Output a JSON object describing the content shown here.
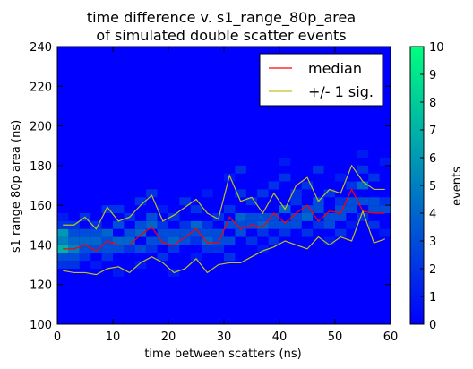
{
  "chart_data": {
    "type": "heatmap",
    "title": "time difference v. s1_range_80p_area",
    "subtitle": "of simulated double scatter events",
    "xlabel": "time between scatters (ns)",
    "ylabel": "s1 range 80p area (ns)",
    "xlim": [
      0,
      60
    ],
    "ylim": [
      100,
      240
    ],
    "xticks": [
      0,
      10,
      20,
      30,
      40,
      50,
      60
    ],
    "yticks": [
      100,
      120,
      140,
      160,
      180,
      200,
      220,
      240
    ],
    "grid": false,
    "legend_position": "top-right",
    "heatmap": {
      "x_bin_width": 2,
      "y_bin_width": 4,
      "cells": [
        [
          0,
          136,
          7
        ],
        [
          0,
          140,
          5
        ],
        [
          0,
          144,
          6
        ],
        [
          0,
          132,
          3
        ],
        [
          0,
          128,
          2
        ],
        [
          0,
          148,
          2
        ],
        [
          0,
          152,
          1
        ],
        [
          2,
          136,
          5
        ],
        [
          2,
          140,
          4
        ],
        [
          2,
          132,
          3
        ],
        [
          2,
          144,
          3
        ],
        [
          2,
          128,
          2
        ],
        [
          2,
          148,
          2
        ],
        [
          4,
          140,
          4
        ],
        [
          4,
          136,
          3
        ],
        [
          4,
          144,
          3
        ],
        [
          4,
          132,
          2
        ],
        [
          4,
          152,
          2
        ],
        [
          6,
          140,
          4
        ],
        [
          6,
          136,
          3
        ],
        [
          6,
          144,
          3
        ],
        [
          6,
          148,
          2
        ],
        [
          6,
          128,
          1
        ],
        [
          8,
          144,
          4
        ],
        [
          8,
          140,
          3
        ],
        [
          8,
          136,
          3
        ],
        [
          8,
          132,
          2
        ],
        [
          8,
          156,
          2
        ],
        [
          10,
          140,
          4
        ],
        [
          10,
          148,
          3
        ],
        [
          10,
          136,
          3
        ],
        [
          10,
          156,
          2
        ],
        [
          10,
          124,
          1
        ],
        [
          12,
          140,
          4
        ],
        [
          12,
          144,
          3
        ],
        [
          12,
          136,
          2
        ],
        [
          12,
          152,
          2
        ],
        [
          14,
          144,
          4
        ],
        [
          14,
          136,
          3
        ],
        [
          14,
          148,
          3
        ],
        [
          14,
          160,
          2
        ],
        [
          14,
          128,
          1
        ],
        [
          16,
          148,
          4
        ],
        [
          16,
          140,
          3
        ],
        [
          16,
          152,
          3
        ],
        [
          16,
          136,
          2
        ],
        [
          16,
          164,
          2
        ],
        [
          18,
          140,
          3
        ],
        [
          18,
          144,
          3
        ],
        [
          18,
          148,
          2
        ],
        [
          18,
          132,
          2
        ],
        [
          18,
          156,
          1
        ],
        [
          20,
          140,
          4
        ],
        [
          20,
          144,
          3
        ],
        [
          20,
          136,
          2
        ],
        [
          20,
          152,
          2
        ],
        [
          20,
          124,
          1
        ],
        [
          22,
          144,
          3
        ],
        [
          22,
          140,
          3
        ],
        [
          22,
          148,
          2
        ],
        [
          22,
          160,
          2
        ],
        [
          24,
          148,
          4
        ],
        [
          24,
          144,
          3
        ],
        [
          24,
          140,
          2
        ],
        [
          24,
          156,
          2
        ],
        [
          24,
          132,
          1
        ],
        [
          26,
          140,
          4
        ],
        [
          26,
          144,
          3
        ],
        [
          26,
          148,
          2
        ],
        [
          26,
          136,
          2
        ],
        [
          26,
          164,
          1
        ],
        [
          28,
          140,
          3
        ],
        [
          28,
          144,
          3
        ],
        [
          28,
          136,
          2
        ],
        [
          28,
          152,
          2
        ],
        [
          30,
          148,
          3
        ],
        [
          30,
          140,
          3
        ],
        [
          30,
          156,
          2
        ],
        [
          30,
          132,
          2
        ],
        [
          30,
          172,
          1
        ],
        [
          32,
          152,
          4
        ],
        [
          32,
          144,
          3
        ],
        [
          32,
          148,
          3
        ],
        [
          32,
          164,
          2
        ],
        [
          32,
          176,
          2
        ],
        [
          34,
          148,
          3
        ],
        [
          34,
          152,
          3
        ],
        [
          34,
          140,
          2
        ],
        [
          34,
          160,
          2
        ],
        [
          36,
          148,
          4
        ],
        [
          36,
          152,
          3
        ],
        [
          36,
          144,
          2
        ],
        [
          36,
          164,
          2
        ],
        [
          36,
          136,
          1
        ],
        [
          38,
          148,
          3
        ],
        [
          38,
          152,
          3
        ],
        [
          38,
          140,
          2
        ],
        [
          38,
          168,
          2
        ],
        [
          40,
          156,
          4
        ],
        [
          40,
          148,
          3
        ],
        [
          40,
          144,
          2
        ],
        [
          40,
          172,
          2
        ],
        [
          40,
          180,
          1
        ],
        [
          42,
          152,
          3
        ],
        [
          42,
          148,
          3
        ],
        [
          42,
          160,
          2
        ],
        [
          42,
          164,
          2
        ],
        [
          44,
          152,
          4
        ],
        [
          44,
          156,
          3
        ],
        [
          44,
          144,
          2
        ],
        [
          44,
          168,
          2
        ],
        [
          46,
          156,
          3
        ],
        [
          46,
          160,
          3
        ],
        [
          46,
          148,
          2
        ],
        [
          46,
          176,
          2
        ],
        [
          48,
          152,
          3
        ],
        [
          48,
          148,
          3
        ],
        [
          48,
          164,
          2
        ],
        [
          48,
          140,
          1
        ],
        [
          50,
          156,
          3
        ],
        [
          50,
          152,
          3
        ],
        [
          50,
          160,
          2
        ],
        [
          50,
          144,
          2
        ],
        [
          50,
          172,
          1
        ],
        [
          52,
          156,
          3
        ],
        [
          52,
          160,
          3
        ],
        [
          52,
          168,
          2
        ],
        [
          52,
          148,
          1
        ],
        [
          54,
          168,
          4
        ],
        [
          54,
          160,
          3
        ],
        [
          54,
          176,
          2
        ],
        [
          54,
          152,
          2
        ],
        [
          54,
          184,
          1
        ],
        [
          56,
          156,
          3
        ],
        [
          56,
          160,
          3
        ],
        [
          56,
          172,
          2
        ],
        [
          56,
          148,
          2
        ],
        [
          58,
          156,
          3
        ],
        [
          58,
          160,
          2
        ],
        [
          58,
          180,
          1
        ],
        [
          58,
          144,
          1
        ]
      ]
    },
    "colorbar": {
      "label": "events",
      "min": 0,
      "max": 10,
      "ticks": [
        0,
        1,
        2,
        3,
        4,
        5,
        6,
        7,
        8,
        9,
        10
      ],
      "colors": [
        "#0000ff",
        "#00ff80"
      ]
    },
    "series": [
      {
        "name": "median",
        "color": "#ff0000",
        "x": [
          0,
          2,
          4,
          6,
          8,
          10,
          12,
          14,
          16,
          18,
          20,
          22,
          24,
          26,
          28,
          30,
          32,
          34,
          36,
          38,
          40,
          42,
          44,
          46,
          48,
          50,
          52,
          54,
          56,
          58
        ],
        "y": [
          138,
          138,
          140,
          137,
          142,
          140,
          140,
          145,
          149,
          141,
          140,
          144,
          148,
          141,
          141,
          154,
          148,
          150,
          149,
          156,
          151,
          156,
          160,
          152,
          157,
          156,
          168,
          157,
          156,
          156
        ]
      },
      {
        "name": "+/- 1 sig.",
        "color": "#c0c020",
        "x": [
          0,
          2,
          4,
          6,
          8,
          10,
          12,
          14,
          16,
          18,
          20,
          22,
          24,
          26,
          28,
          30,
          32,
          34,
          36,
          38,
          40,
          42,
          44,
          46,
          48,
          50,
          52,
          54,
          56,
          58
        ],
        "y": [
          150,
          150,
          154,
          148,
          159,
          152,
          154,
          160,
          165,
          152,
          155,
          159,
          163,
          156,
          153,
          175,
          162,
          164,
          156,
          166,
          158,
          170,
          174,
          162,
          168,
          166,
          180,
          172,
          168,
          168
        ]
      },
      {
        "name": "",
        "color": "#c0c020",
        "x": [
          0,
          2,
          4,
          6,
          8,
          10,
          12,
          14,
          16,
          18,
          20,
          22,
          24,
          26,
          28,
          30,
          32,
          34,
          36,
          38,
          40,
          42,
          44,
          46,
          48,
          50,
          52,
          54,
          56,
          58
        ],
        "y": [
          127,
          126,
          126,
          125,
          128,
          129,
          126,
          131,
          134,
          131,
          126,
          128,
          133,
          126,
          130,
          131,
          131,
          134,
          137,
          139,
          142,
          140,
          138,
          144,
          140,
          144,
          142,
          157,
          141,
          143
        ]
      }
    ]
  }
}
